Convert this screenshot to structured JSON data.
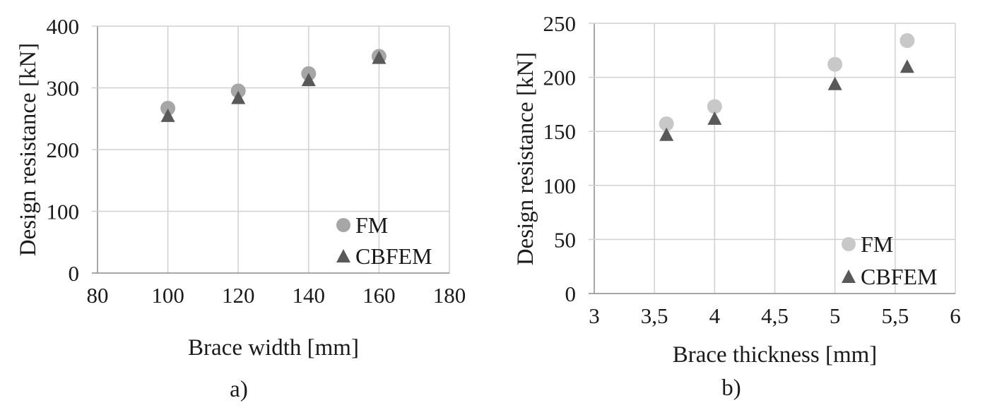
{
  "chart_data": [
    {
      "type": "scatter",
      "xlabel": "Brace width [mm]",
      "ylabel": "Design resistance [kN]",
      "caption": "a)",
      "xlim": [
        80,
        180
      ],
      "ylim": [
        0,
        400
      ],
      "xticks": [
        "80",
        "100",
        "120",
        "140",
        "160",
        "180"
      ],
      "yticks": [
        "0",
        "100",
        "200",
        "300",
        "400"
      ],
      "grid": true,
      "legend_position": "bottom-right",
      "series": [
        {
          "name": "FM",
          "marker": "circle",
          "color": "#a6a6a6",
          "points": [
            [
              100,
              267
            ],
            [
              120,
              295
            ],
            [
              140,
              323
            ],
            [
              160,
              351
            ]
          ]
        },
        {
          "name": "CBFEM",
          "marker": "triangle",
          "color": "#595959",
          "points": [
            [
              100,
              255
            ],
            [
              120,
              284
            ],
            [
              140,
              313
            ],
            [
              160,
              349
            ]
          ]
        }
      ]
    },
    {
      "type": "scatter",
      "xlabel": "Brace thickness [mm]",
      "ylabel": "Design resistance [kN]",
      "caption": "b)",
      "xlim": [
        3,
        6
      ],
      "ylim": [
        0,
        250
      ],
      "xticks": [
        "3",
        "3,5",
        "4",
        "4,5",
        "5",
        "5,5",
        "6"
      ],
      "yticks": [
        "0",
        "50",
        "100",
        "150",
        "200",
        "250"
      ],
      "grid": true,
      "legend_position": "bottom-right",
      "series": [
        {
          "name": "FM",
          "marker": "circle",
          "color": "#c8c8c8",
          "points": [
            [
              3.6,
              157
            ],
            [
              4,
              173
            ],
            [
              5,
              212
            ],
            [
              5.6,
              234
            ]
          ]
        },
        {
          "name": "CBFEM",
          "marker": "triangle",
          "color": "#595959",
          "points": [
            [
              3.6,
              147
            ],
            [
              4,
              162
            ],
            [
              5,
              194
            ],
            [
              5.6,
              210
            ]
          ]
        }
      ]
    }
  ]
}
